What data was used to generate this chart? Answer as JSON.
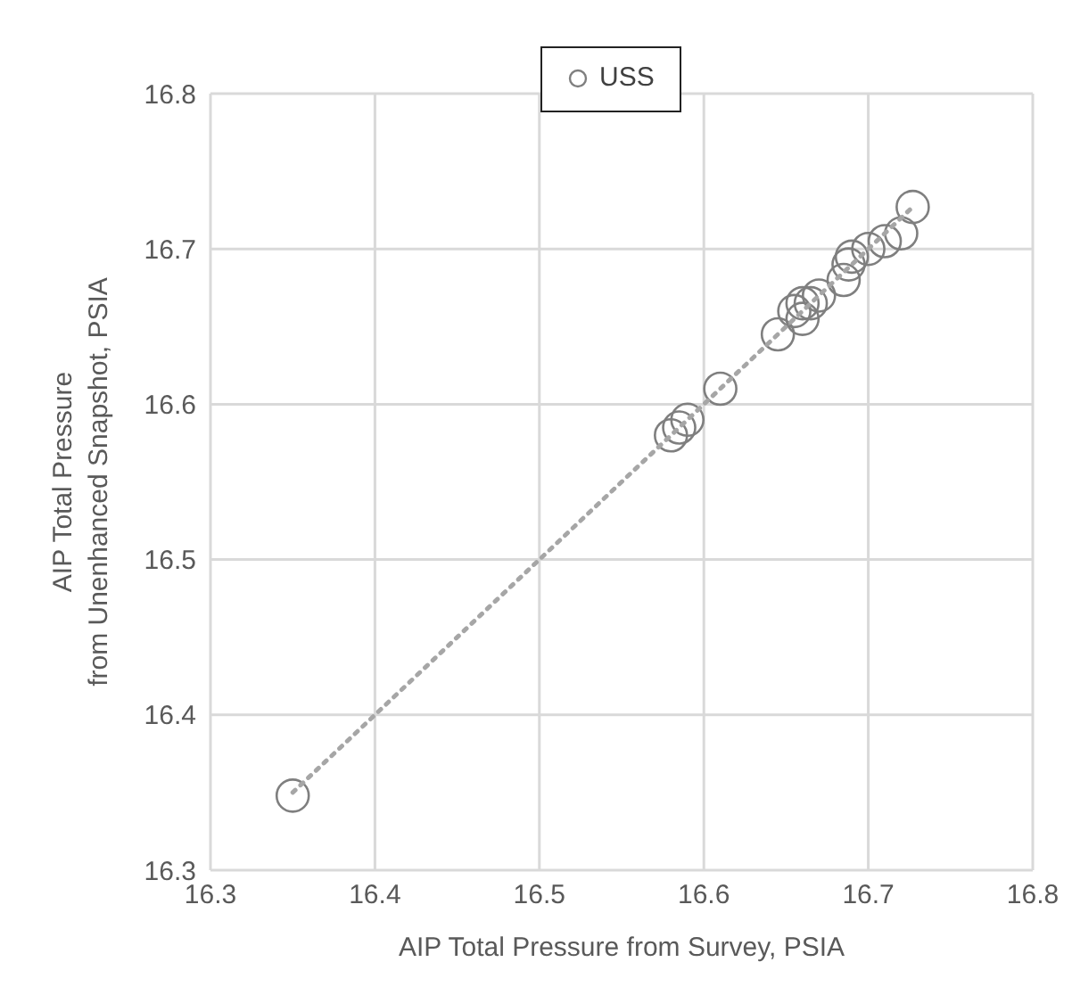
{
  "chart_data": {
    "type": "scatter",
    "xlabel": "AIP Total Pressure from Survey, PSIA",
    "ylabel": "AIP Total Pressure from Unenhanced Snapshot, PSIA",
    "xlim": [
      16.3,
      16.8
    ],
    "xticks": [
      16.3,
      16.4,
      16.5,
      16.6,
      16.7,
      16.8
    ],
    "ylim": [
      16.3,
      16.8
    ],
    "yticks": [
      16.3,
      16.4,
      16.5,
      16.6,
      16.7,
      16.8
    ],
    "grid": true,
    "legend": "top",
    "series": [
      {
        "name": "USS",
        "marker": "circle",
        "color": "#7f7f7f",
        "x": [
          16.35,
          16.58,
          16.585,
          16.59,
          16.61,
          16.645,
          16.655,
          16.66,
          16.66,
          16.665,
          16.67,
          16.685,
          16.688,
          16.69,
          16.7,
          16.71,
          16.72,
          16.727
        ],
        "values": [
          16.348,
          16.58,
          16.585,
          16.59,
          16.61,
          16.645,
          16.66,
          16.655,
          16.665,
          16.665,
          16.67,
          16.68,
          16.69,
          16.695,
          16.7,
          16.705,
          16.71,
          16.727
        ]
      },
      {
        "type": "line",
        "line_style": "dotted",
        "color": "#a6a6a6",
        "x": [
          16.35,
          16.727
        ],
        "values": [
          16.35,
          16.727
        ]
      }
    ]
  }
}
